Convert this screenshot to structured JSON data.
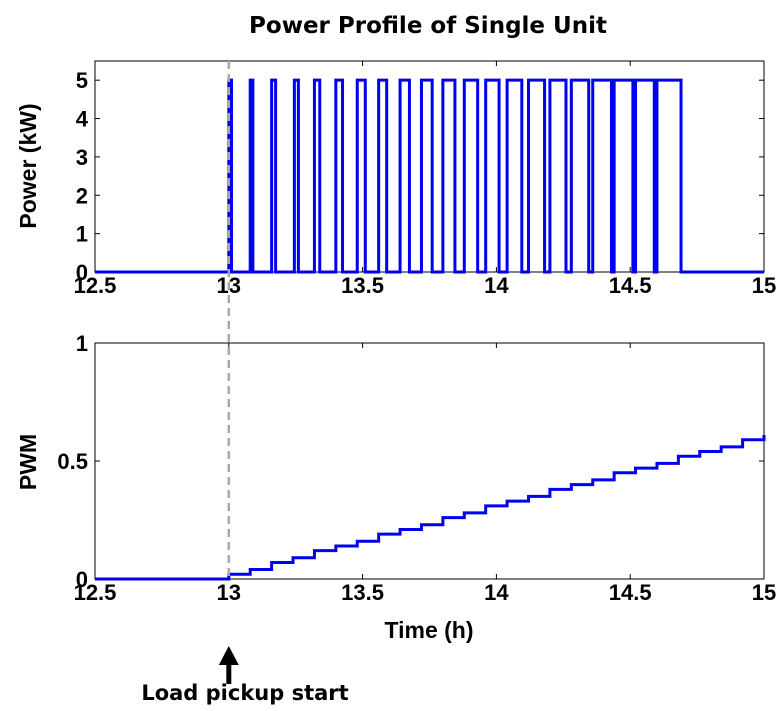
{
  "colors": {
    "series": "#0000ee",
    "marker": "#a9a9a9",
    "arrow": "#000000"
  },
  "annotation": {
    "text": "Load pickup start",
    "x": 13,
    "icon": "up-arrow-icon"
  },
  "chart_data": [
    {
      "type": "line",
      "title": "Power Profile of Single Unit",
      "xlabel": "",
      "ylabel": "Power (kW)",
      "xlim": [
        12.5,
        15
      ],
      "ylim": [
        0,
        5.5
      ],
      "xticks": [
        "12.5",
        "13",
        "13.5",
        "14",
        "14.5",
        "15"
      ],
      "yticks": [
        "0",
        "1",
        "2",
        "3",
        "4",
        "5"
      ],
      "grid": false,
      "series": [
        {
          "style": "rectangular pulses between 0 and 5 kW",
          "baseline": 0,
          "high": 5,
          "pulses": [
            [
              13.0,
              13.01
            ],
            [
              13.08,
              13.09
            ],
            [
              13.16,
              13.175
            ],
            [
              13.245,
              13.26
            ],
            [
              13.32,
              13.34
            ],
            [
              13.4,
              13.425
            ],
            [
              13.48,
              13.51
            ],
            [
              13.56,
              13.59
            ],
            [
              13.64,
              13.675
            ],
            [
              13.72,
              13.76
            ],
            [
              13.8,
              13.845
            ],
            [
              13.88,
              13.93
            ],
            [
              13.96,
              14.01
            ],
            [
              14.04,
              14.095
            ],
            [
              14.12,
              14.18
            ],
            [
              14.2,
              14.26
            ],
            [
              14.28,
              14.345
            ],
            [
              14.36,
              14.43
            ],
            [
              14.44,
              14.51
            ],
            [
              14.52,
              14.59
            ],
            [
              14.6,
              14.69
            ]
          ]
        }
      ]
    },
    {
      "type": "line",
      "title": "",
      "xlabel": "Time (h)",
      "ylabel": "PWM",
      "xlim": [
        12.5,
        15
      ],
      "ylim": [
        0,
        1
      ],
      "xticks": [
        "12.5",
        "13",
        "13.5",
        "14",
        "14.5",
        "15"
      ],
      "yticks": [
        "0",
        "0.5",
        "1"
      ],
      "grid": false,
      "series": [
        {
          "style": "staircase",
          "x": [
            12.5,
            13.0,
            13.08,
            13.16,
            13.24,
            13.32,
            13.4,
            13.48,
            13.56,
            13.64,
            13.72,
            13.8,
            13.88,
            13.96,
            14.04,
            14.12,
            14.2,
            14.28,
            14.36,
            14.44,
            14.52,
            14.6,
            14.68,
            14.76,
            14.84,
            14.92,
            15.0
          ],
          "y": [
            0,
            0.02,
            0.04,
            0.07,
            0.09,
            0.12,
            0.14,
            0.16,
            0.19,
            0.21,
            0.23,
            0.26,
            0.28,
            0.31,
            0.33,
            0.35,
            0.38,
            0.4,
            0.42,
            0.45,
            0.47,
            0.49,
            0.52,
            0.54,
            0.56,
            0.59,
            0.61
          ]
        }
      ]
    }
  ]
}
